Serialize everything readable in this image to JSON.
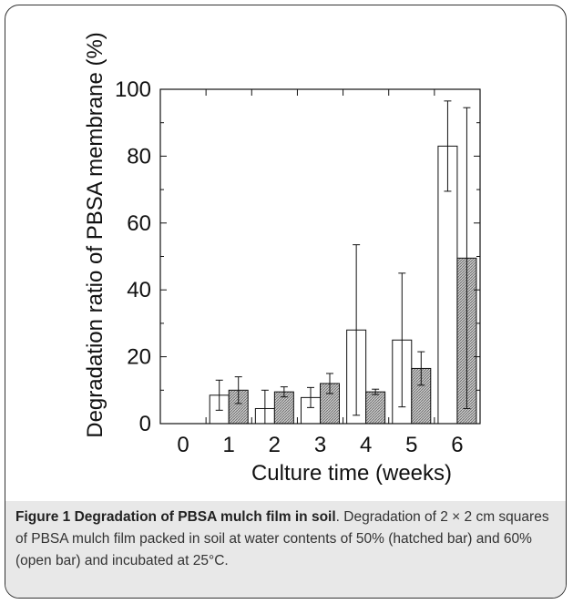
{
  "caption": {
    "title": "Figure 1 Degradation of PBSA mulch film in soil",
    "text": ". Degradation of 2 × 2 cm squares of PBSA mulch film packed in soil at water contents of 50% (hatched bar) and 60% (open bar) and incubated at 25°C."
  },
  "chart_data": {
    "type": "bar",
    "title": "",
    "xlabel": "Culture time (weeks)",
    "ylabel": "Degradation ratio of PBSA membrane (%)",
    "categories": [
      "0",
      "1",
      "2",
      "3",
      "4",
      "5",
      "6"
    ],
    "ylim": [
      0,
      100
    ],
    "yticks": [
      "0",
      "20",
      "40",
      "60",
      "80",
      "100"
    ],
    "grid": false,
    "legend": "none",
    "series": [
      {
        "style": "open",
        "color": "#ffffff",
        "values": [
          0,
          8.5,
          4.5,
          7.8,
          28,
          25,
          83
        ],
        "error": [
          0,
          4.5,
          5.5,
          3,
          25.5,
          20,
          13.5
        ]
      },
      {
        "style": "hatched",
        "color": "#b0b0b0",
        "values": [
          0,
          10,
          9.5,
          12,
          9.5,
          16.5,
          49.5
        ],
        "error": [
          0,
          4,
          1.5,
          3,
          0.8,
          5,
          45
        ]
      }
    ]
  }
}
